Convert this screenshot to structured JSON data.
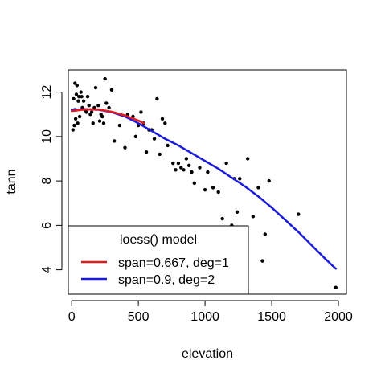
{
  "chart_data": {
    "type": "scatter",
    "title": "",
    "xlabel": "elevation",
    "ylabel": "tann",
    "xlim": [
      -25,
      2060
    ],
    "ylim": [
      2.9,
      13.0
    ],
    "x_ticks": [
      0,
      500,
      1000,
      1500,
      2000
    ],
    "x_tick_labels": [
      "0",
      "500",
      "1000",
      "1500",
      "2000"
    ],
    "y_ticks": [
      4,
      6,
      8,
      10,
      12
    ],
    "y_tick_labels": [
      "4",
      "6",
      "8",
      "10",
      "12"
    ],
    "grid": false,
    "points": {
      "color": "#000000",
      "x": [
        10,
        15,
        20,
        20,
        25,
        30,
        30,
        35,
        40,
        45,
        50,
        55,
        60,
        70,
        75,
        80,
        90,
        100,
        110,
        120,
        130,
        140,
        150,
        160,
        170,
        180,
        200,
        210,
        220,
        230,
        240,
        250,
        260,
        280,
        300,
        320,
        360,
        400,
        420,
        460,
        480,
        500,
        520,
        540,
        560,
        580,
        600,
        620,
        640,
        660,
        680,
        700,
        720,
        760,
        780,
        800,
        820,
        840,
        860,
        880,
        900,
        920,
        960,
        1000,
        1020,
        1060,
        1100,
        1130,
        1160,
        1200,
        1220,
        1240,
        1260,
        1300,
        1320,
        1360,
        1400,
        1430,
        1450,
        1480,
        1700,
        1980
      ],
      "y": [
        10.3,
        11.7,
        11.2,
        10.5,
        12.4,
        10.8,
        11.2,
        11.9,
        12.3,
        10.6,
        11.6,
        11.8,
        10.9,
        12.0,
        11.8,
        11.3,
        11.6,
        11.2,
        11.1,
        11.8,
        11.4,
        11.0,
        11.1,
        10.6,
        11.3,
        12.2,
        11.4,
        10.7,
        11.0,
        10.9,
        10.6,
        12.6,
        11.5,
        11.3,
        12.1,
        9.8,
        10.5,
        9.5,
        11.0,
        10.9,
        10.0,
        10.5,
        11.1,
        10.6,
        9.3,
        10.3,
        10.3,
        9.9,
        11.7,
        9.2,
        10.8,
        10.6,
        9.6,
        8.8,
        8.5,
        8.8,
        8.6,
        8.5,
        9.0,
        8.7,
        8.4,
        7.9,
        8.6,
        7.6,
        8.4,
        7.7,
        7.5,
        6.3,
        8.8,
        6.0,
        8.1,
        6.6,
        8.1,
        5.8,
        9.0,
        6.4,
        7.7,
        4.4,
        5.6,
        8.0,
        6.5,
        3.2
      ]
    },
    "series": [
      {
        "name": "span=0.667, deg=1",
        "color": "#e41a1c",
        "x": [
          0,
          100,
          200,
          300,
          400,
          500,
          540
        ],
        "y": [
          11.15,
          11.22,
          11.22,
          11.12,
          10.95,
          10.72,
          10.6
        ]
      },
      {
        "name": "span=0.9, deg=2",
        "color": "#1a1adb",
        "x": [
          0,
          100,
          200,
          300,
          400,
          500,
          600,
          700,
          800,
          900,
          1000,
          1100,
          1200,
          1300,
          1400,
          1500,
          1600,
          1700,
          1800,
          1900,
          1980
        ],
        "y": [
          11.2,
          11.23,
          11.21,
          11.1,
          10.9,
          10.6,
          10.25,
          9.9,
          9.6,
          9.25,
          8.9,
          8.55,
          8.15,
          7.75,
          7.3,
          6.8,
          6.25,
          5.7,
          5.1,
          4.5,
          4.05
        ]
      }
    ],
    "legend": {
      "title": "loess() model",
      "position": "bottom-left",
      "entries": [
        "span=0.667, deg=1",
        "span=0.9, deg=2"
      ]
    }
  }
}
